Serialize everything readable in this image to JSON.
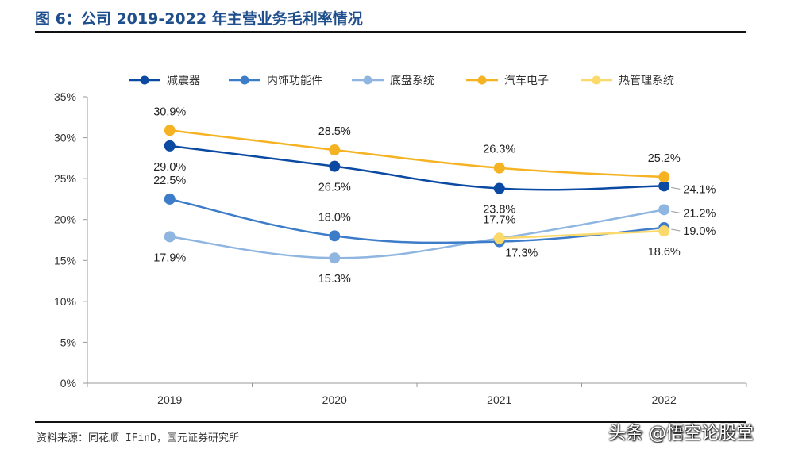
{
  "chart_data": {
    "type": "line",
    "title": "图 6：公司 2019-2022 年主营业务毛利率情况",
    "categories": [
      "2019",
      "2020",
      "2021",
      "2022"
    ],
    "ylim": [
      0,
      35
    ],
    "yticks": [
      0,
      5,
      10,
      15,
      20,
      25,
      30,
      35
    ],
    "ytick_labels": [
      "0%",
      "5%",
      "10%",
      "15%",
      "20%",
      "25%",
      "30%",
      "35%"
    ],
    "legend_position": "top",
    "series": [
      {
        "name": "减震器",
        "color": "#0b4aa2",
        "values": [
          29.0,
          26.5,
          23.8,
          24.1
        ],
        "labels": [
          "29.0%",
          "26.5%",
          "23.8%",
          "24.1%"
        ],
        "label_pos": [
          "below",
          "below",
          "below",
          "right"
        ]
      },
      {
        "name": "内饰功能件",
        "color": "#3d7cc9",
        "values": [
          22.5,
          18.0,
          17.3,
          19.0
        ],
        "labels": [
          "22.5%",
          "18.0%",
          "17.3%",
          "19.0%"
        ],
        "label_pos": [
          "above",
          "above",
          "below-right",
          "right"
        ]
      },
      {
        "name": "底盘系统",
        "color": "#8fb6e0",
        "values": [
          17.9,
          15.3,
          17.7,
          21.2
        ],
        "labels": [
          "17.9%",
          "15.3%",
          "17.7%",
          "21.2%"
        ],
        "label_pos": [
          "below",
          "below",
          "above",
          "right"
        ]
      },
      {
        "name": "汽车电子",
        "color": "#f5b324",
        "values": [
          30.9,
          28.5,
          26.3,
          25.2
        ],
        "labels": [
          "30.9%",
          "28.5%",
          "26.3%",
          "25.2%"
        ],
        "label_pos": [
          "above",
          "above",
          "above",
          "above"
        ]
      },
      {
        "name": "热管理系统",
        "color": "#fbd96b",
        "x_start": 2,
        "values": [
          null,
          null,
          17.7,
          18.6
        ],
        "labels": [
          null,
          null,
          null,
          "18.6%"
        ],
        "label_pos": [
          null,
          null,
          null,
          "below"
        ]
      }
    ]
  },
  "figure": {
    "title": "图 6：公司 2019-2022 年主营业务毛利率情况",
    "source": "资料来源：同花顺 IFinD，国元证券研究所",
    "watermark": "头条 @悟空论股堂"
  }
}
